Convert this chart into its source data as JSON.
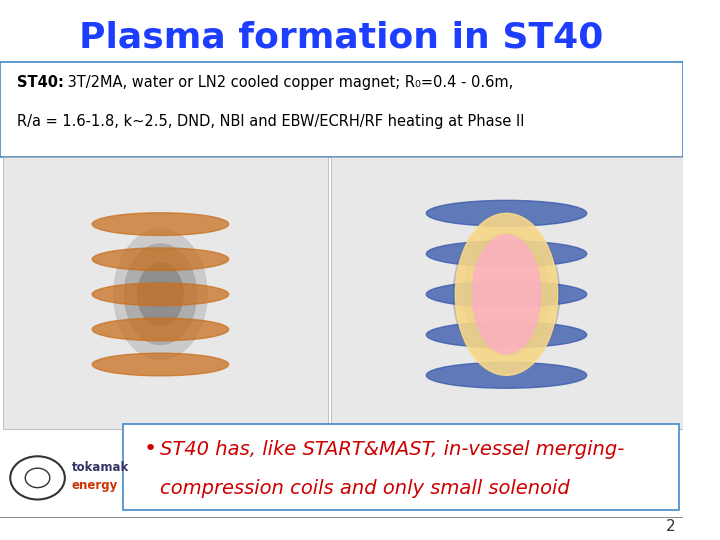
{
  "title": "Plasma formation in ST40",
  "title_color": "#1e3eff",
  "title_fontsize": 26,
  "title_weight": "bold",
  "bg_color": "#ffffff",
  "subtitle_bold": "ST40:",
  "subtitle_line1_rest": " 3T/2MA, water or LN2 cooled copper magnet; R₀=0.4 - 0.6m,",
  "subtitle_line2": "R/a = 1.6-1.8, k~2.5, DND, NBI and EBW/ECRH/RF heating at Phase II",
  "bullet_text_line1": "ST40 has, like START&MAST, in-vessel merging-",
  "bullet_text_line2": "compression coils and only small solenoid",
  "bullet_color": "#cc0000",
  "bullet_fontsize": 14,
  "info_box_color": "#4488cc",
  "page_number": "2",
  "logo_text1": "tokamak",
  "logo_text2": "energy",
  "logo_color1": "#333366",
  "logo_color2": "#cc3300"
}
